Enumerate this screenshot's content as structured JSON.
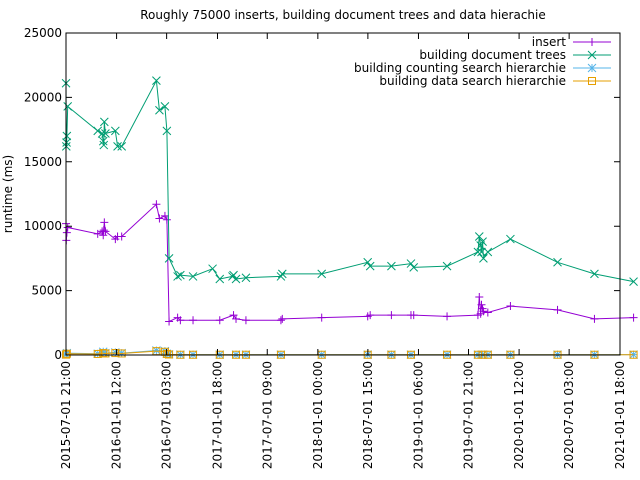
{
  "chart_data": {
    "type": "line",
    "title": "Roughly 75000 inserts, building document trees and data hierachie",
    "ylabel": "runtime (ms)",
    "xlabel": "",
    "ylim": [
      0,
      25000
    ],
    "y_ticks": [
      "0",
      "5000",
      "10000",
      "15000",
      "20000",
      "25000"
    ],
    "xlim": [
      "2015-07-01 21:00",
      "2021-01-01 18:00"
    ],
    "x_ticks": [
      "2015-07-01 21:00",
      "2016-01-01 12:00",
      "2016-07-01 03:00",
      "2017-01-01 18:00",
      "2017-07-01 09:00",
      "2018-01-01 00:00",
      "2018-07-01 15:00",
      "2019-01-01 06:00",
      "2019-07-01 21:00",
      "2020-01-01 12:00",
      "2020-07-01 03:00",
      "2021-01-01 18:00"
    ],
    "grid": false,
    "legend_position": "top-right",
    "series": [
      {
        "name": "insert",
        "color": "#9400d3",
        "marker": "plus",
        "x": [
          "2015-07-02",
          "2015-07-03",
          "2015-07-05",
          "2015-07-08",
          "2015-10-25",
          "2015-11-10",
          "2015-11-14",
          "2015-11-16",
          "2015-11-18",
          "2015-11-22",
          "2015-12-28",
          "2016-01-05",
          "2016-01-20",
          "2016-05-25",
          "2016-06-05",
          "2016-06-25",
          "2016-07-02",
          "2016-07-10",
          "2016-08-10",
          "2016-08-20",
          "2016-10-05",
          "2017-01-10",
          "2017-03-01",
          "2017-03-10",
          "2017-04-15",
          "2017-08-20",
          "2017-08-25",
          "2018-01-15",
          "2018-07-01",
          "2018-07-10",
          "2018-09-25",
          "2018-12-05",
          "2018-12-15",
          "2019-04-15",
          "2019-08-05",
          "2019-08-10",
          "2019-08-15",
          "2019-08-18",
          "2019-08-22",
          "2019-08-25",
          "2019-09-10",
          "2019-12-01",
          "2020-05-20",
          "2020-10-01",
          "2021-02-20"
        ],
        "y": [
          10200,
          8900,
          9500,
          9900,
          9400,
          9600,
          9300,
          9700,
          10300,
          9600,
          9000,
          9200,
          9200,
          11700,
          10600,
          10800,
          10500,
          2600,
          2900,
          2700,
          2700,
          2700,
          3100,
          2800,
          2700,
          2700,
          2800,
          2900,
          3000,
          3100,
          3100,
          3100,
          3100,
          3000,
          3100,
          4500,
          3200,
          3900,
          3600,
          3400,
          3300,
          3800,
          3500,
          2800,
          2900
        ]
      },
      {
        "name": "building document trees",
        "color": "#009e73",
        "marker": "x",
        "x": [
          "2015-07-02",
          "2015-07-03",
          "2015-07-04",
          "2015-07-05",
          "2015-07-08",
          "2015-10-25",
          "2015-11-10",
          "2015-11-14",
          "2015-11-16",
          "2015-11-18",
          "2015-11-22",
          "2015-12-28",
          "2016-01-05",
          "2016-01-20",
          "2016-05-25",
          "2016-06-05",
          "2016-06-25",
          "2016-07-02",
          "2016-07-10",
          "2016-08-10",
          "2016-08-20",
          "2016-10-05",
          "2016-12-15",
          "2017-01-10",
          "2017-02-25",
          "2017-03-01",
          "2017-03-10",
          "2017-04-15",
          "2017-08-20",
          "2017-08-25",
          "2018-01-15",
          "2018-07-01",
          "2018-07-10",
          "2018-09-25",
          "2018-12-05",
          "2018-12-15",
          "2019-04-15",
          "2019-08-05",
          "2019-08-10",
          "2019-08-15",
          "2019-08-18",
          "2019-08-22",
          "2019-08-25",
          "2019-09-10",
          "2019-12-01",
          "2020-05-20",
          "2020-10-01",
          "2021-02-20"
        ],
        "y": [
          21100,
          16200,
          16500,
          17000,
          19300,
          17400,
          17200,
          16600,
          16300,
          18100,
          17200,
          17400,
          16200,
          16200,
          21300,
          19000,
          19300,
          17400,
          7500,
          6100,
          6200,
          6100,
          6700,
          5900,
          6100,
          6200,
          5900,
          6000,
          6100,
          6300,
          6300,
          7200,
          6900,
          6900,
          7100,
          6800,
          6900,
          8000,
          9200,
          8500,
          8000,
          8800,
          7500,
          8000,
          9000,
          7200,
          6300,
          5700
        ]
      },
      {
        "name": "building counting search hierarchie",
        "color": "#56b4e9",
        "marker": "star",
        "x": [
          "2015-07-02",
          "2015-07-05",
          "2015-10-25",
          "2015-11-14",
          "2015-11-22",
          "2015-12-28",
          "2016-01-20",
          "2016-05-25",
          "2016-06-25",
          "2016-07-02",
          "2016-07-10",
          "2016-08-20",
          "2016-10-05",
          "2017-01-10",
          "2017-03-10",
          "2017-04-15",
          "2017-08-20",
          "2018-01-15",
          "2018-07-01",
          "2018-09-25",
          "2018-12-05",
          "2019-04-15",
          "2019-08-05",
          "2019-08-22",
          "2019-09-10",
          "2019-12-01",
          "2020-05-20",
          "2020-10-01",
          "2021-02-20"
        ],
        "y": [
          50,
          150,
          100,
          250,
          150,
          200,
          150,
          350,
          300,
          100,
          50,
          30,
          30,
          30,
          30,
          30,
          30,
          30,
          30,
          30,
          30,
          30,
          30,
          30,
          30,
          30,
          30,
          30,
          30
        ]
      },
      {
        "name": "building data search hierarchie",
        "color": "#e69f00",
        "marker": "square",
        "x": [
          "2015-07-02",
          "2015-07-05",
          "2015-10-25",
          "2015-11-14",
          "2015-11-22",
          "2015-12-28",
          "2016-01-20",
          "2016-05-25",
          "2016-06-25",
          "2016-07-02",
          "2016-07-10",
          "2016-08-20",
          "2016-10-05",
          "2017-01-10",
          "2017-03-10",
          "2017-04-15",
          "2017-08-20",
          "2018-01-15",
          "2018-07-01",
          "2018-09-25",
          "2018-12-05",
          "2019-04-15",
          "2019-08-05",
          "2019-08-22",
          "2019-09-10",
          "2019-12-01",
          "2020-05-20",
          "2020-10-01",
          "2021-02-20"
        ],
        "y": [
          30,
          100,
          80,
          150,
          120,
          150,
          120,
          300,
          250,
          80,
          40,
          20,
          20,
          20,
          20,
          20,
          20,
          20,
          20,
          20,
          20,
          20,
          20,
          20,
          20,
          20,
          20,
          20,
          20
        ]
      }
    ]
  }
}
